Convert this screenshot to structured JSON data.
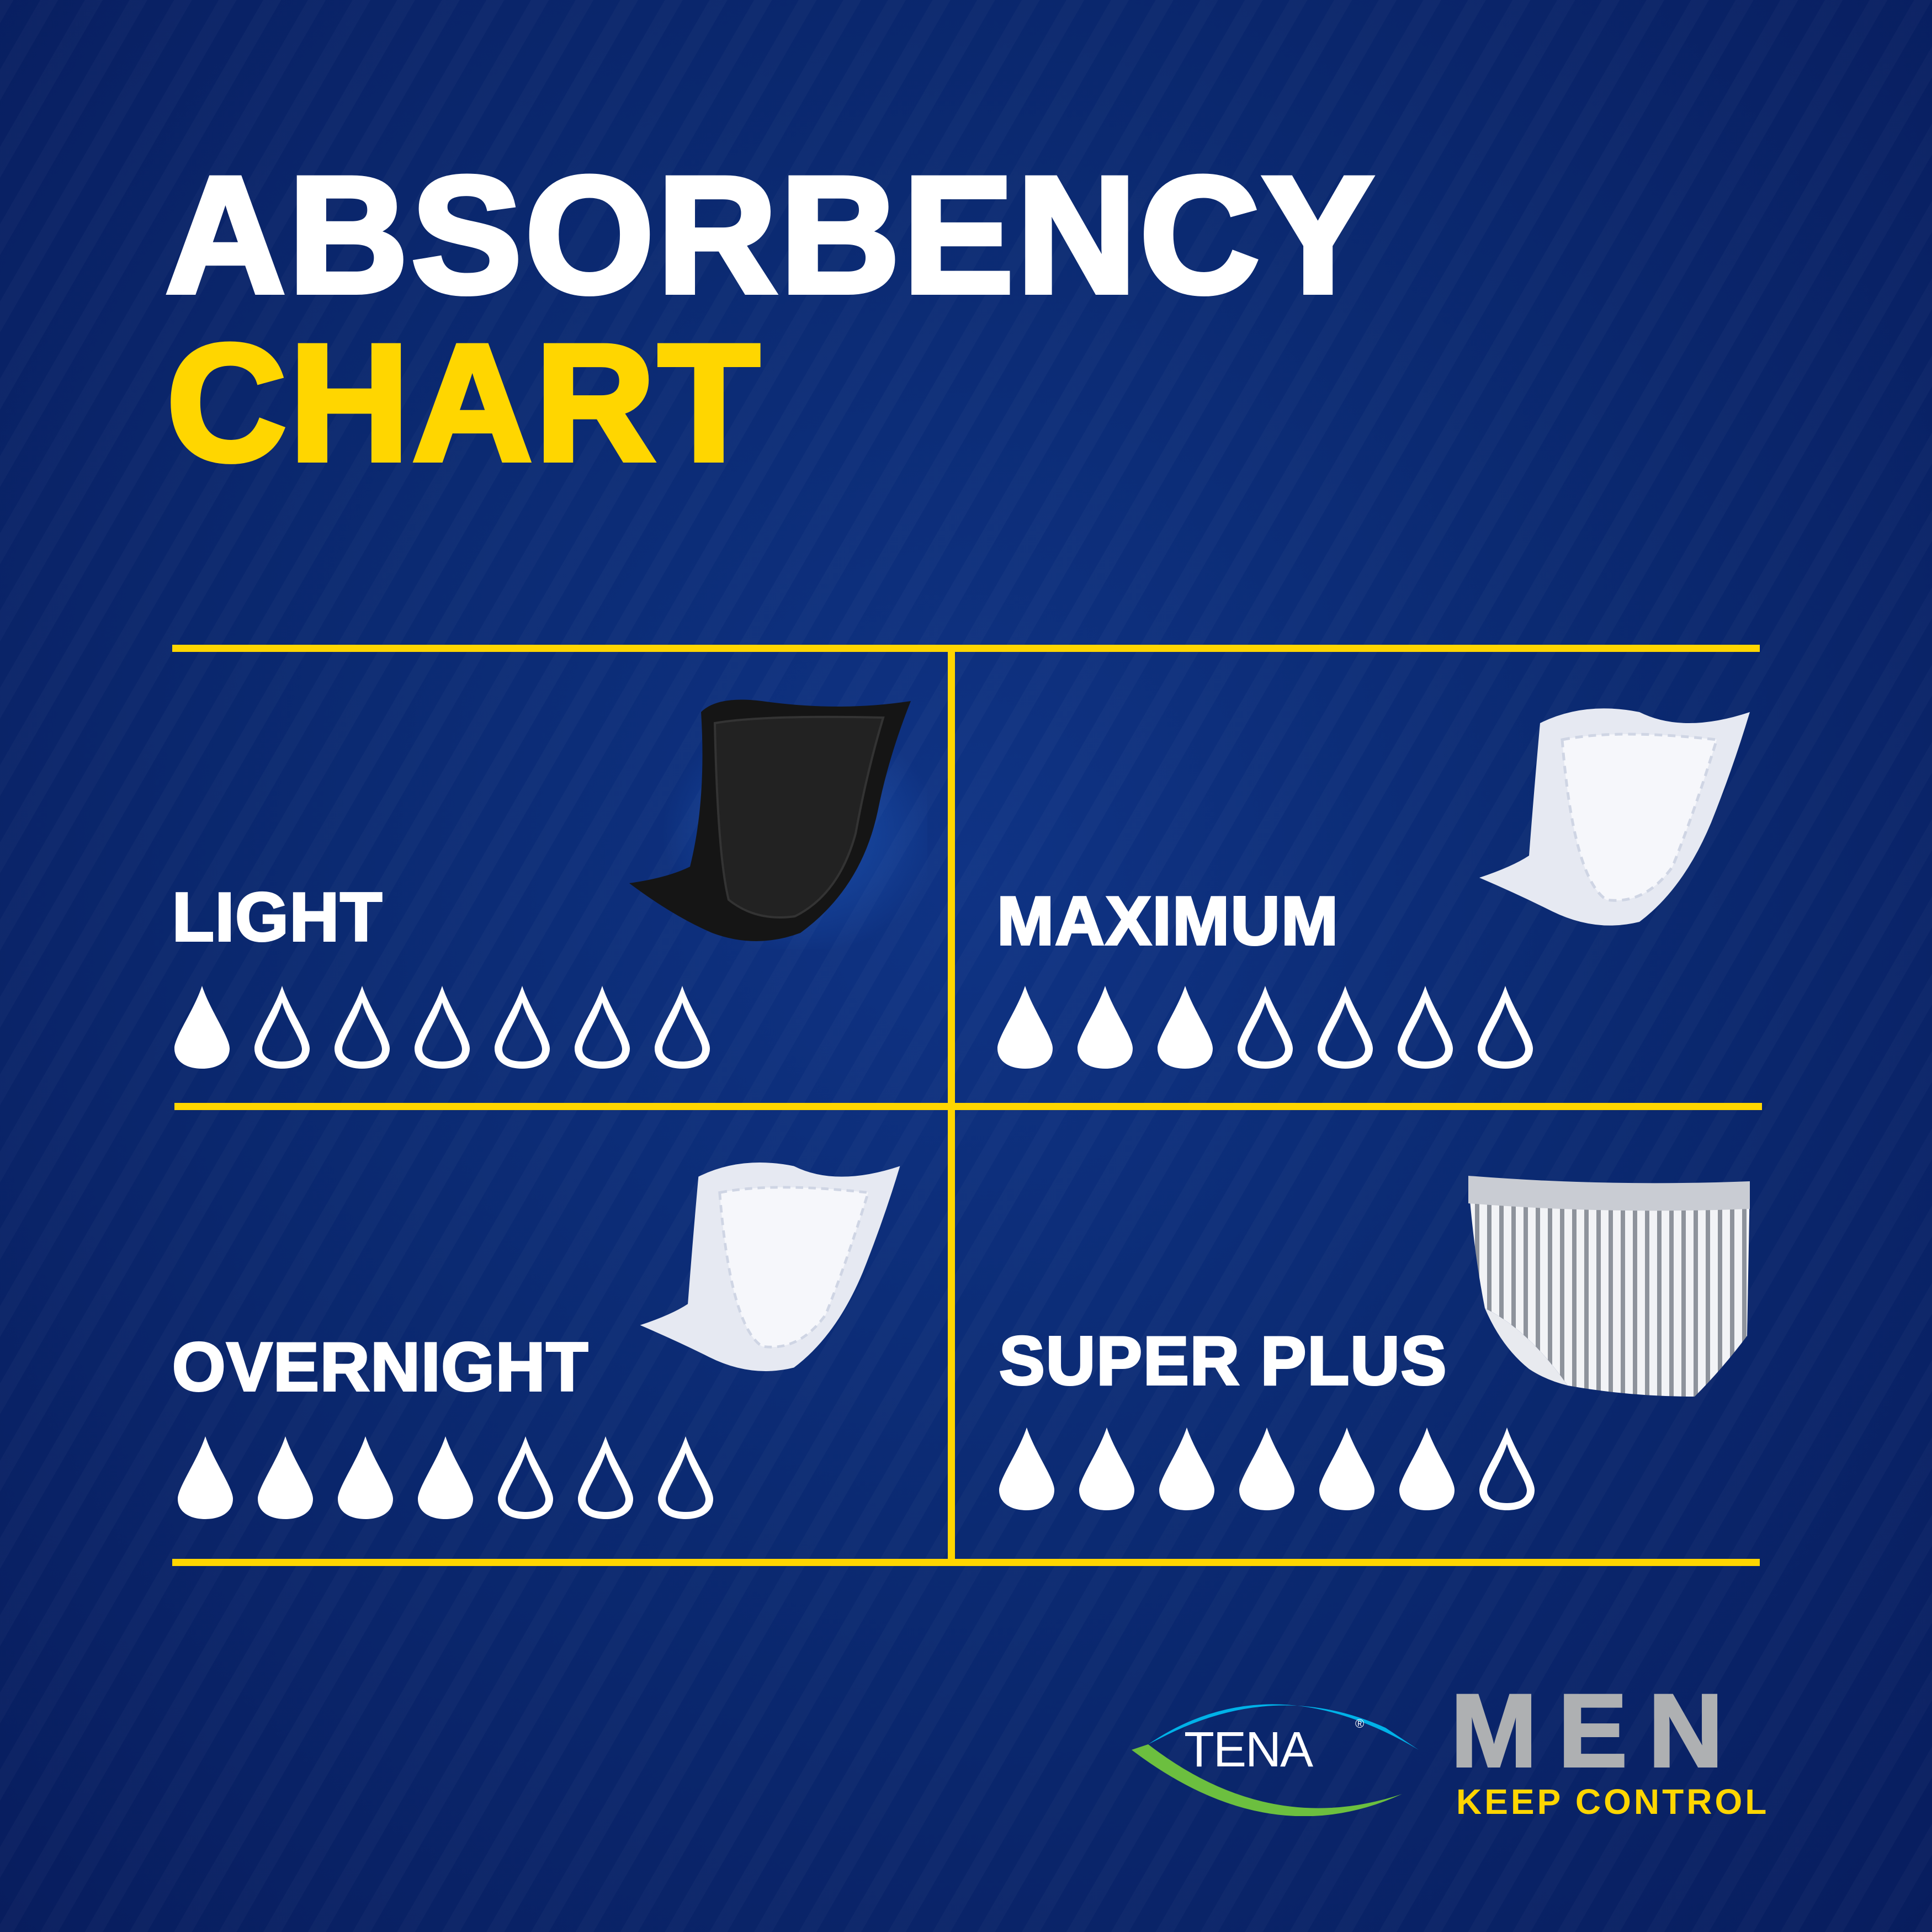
{
  "title": {
    "line1": "ABSORBENCY",
    "line2": "CHART"
  },
  "colors": {
    "background": "#0b2a72",
    "accent": "#ffd600",
    "text": "#ffffff",
    "men_gray": "#aeb0b2",
    "tena_blue": "#00b2e8",
    "tena_green": "#6cbf3f"
  },
  "chart_data": {
    "type": "table",
    "title": "ABSORBENCY CHART",
    "scale_max": 7,
    "icon": "water-drop-icon",
    "categories": [
      "LIGHT",
      "MAXIMUM",
      "OVERNIGHT",
      "SUPER PLUS"
    ],
    "values": [
      1,
      3,
      4,
      6
    ]
  },
  "products": [
    {
      "label": "LIGHT",
      "image": "black-pad-image"
    },
    {
      "label": "MAXIMUM",
      "image": "white-pad-image"
    },
    {
      "label": "OVERNIGHT",
      "image": "white-pad-image"
    },
    {
      "label": "SUPER PLUS",
      "image": "striped-underwear-image"
    }
  ],
  "logo": {
    "brand": "TENA",
    "registered": "®",
    "line": "MEN",
    "tagline": "KEEP CONTROL"
  }
}
